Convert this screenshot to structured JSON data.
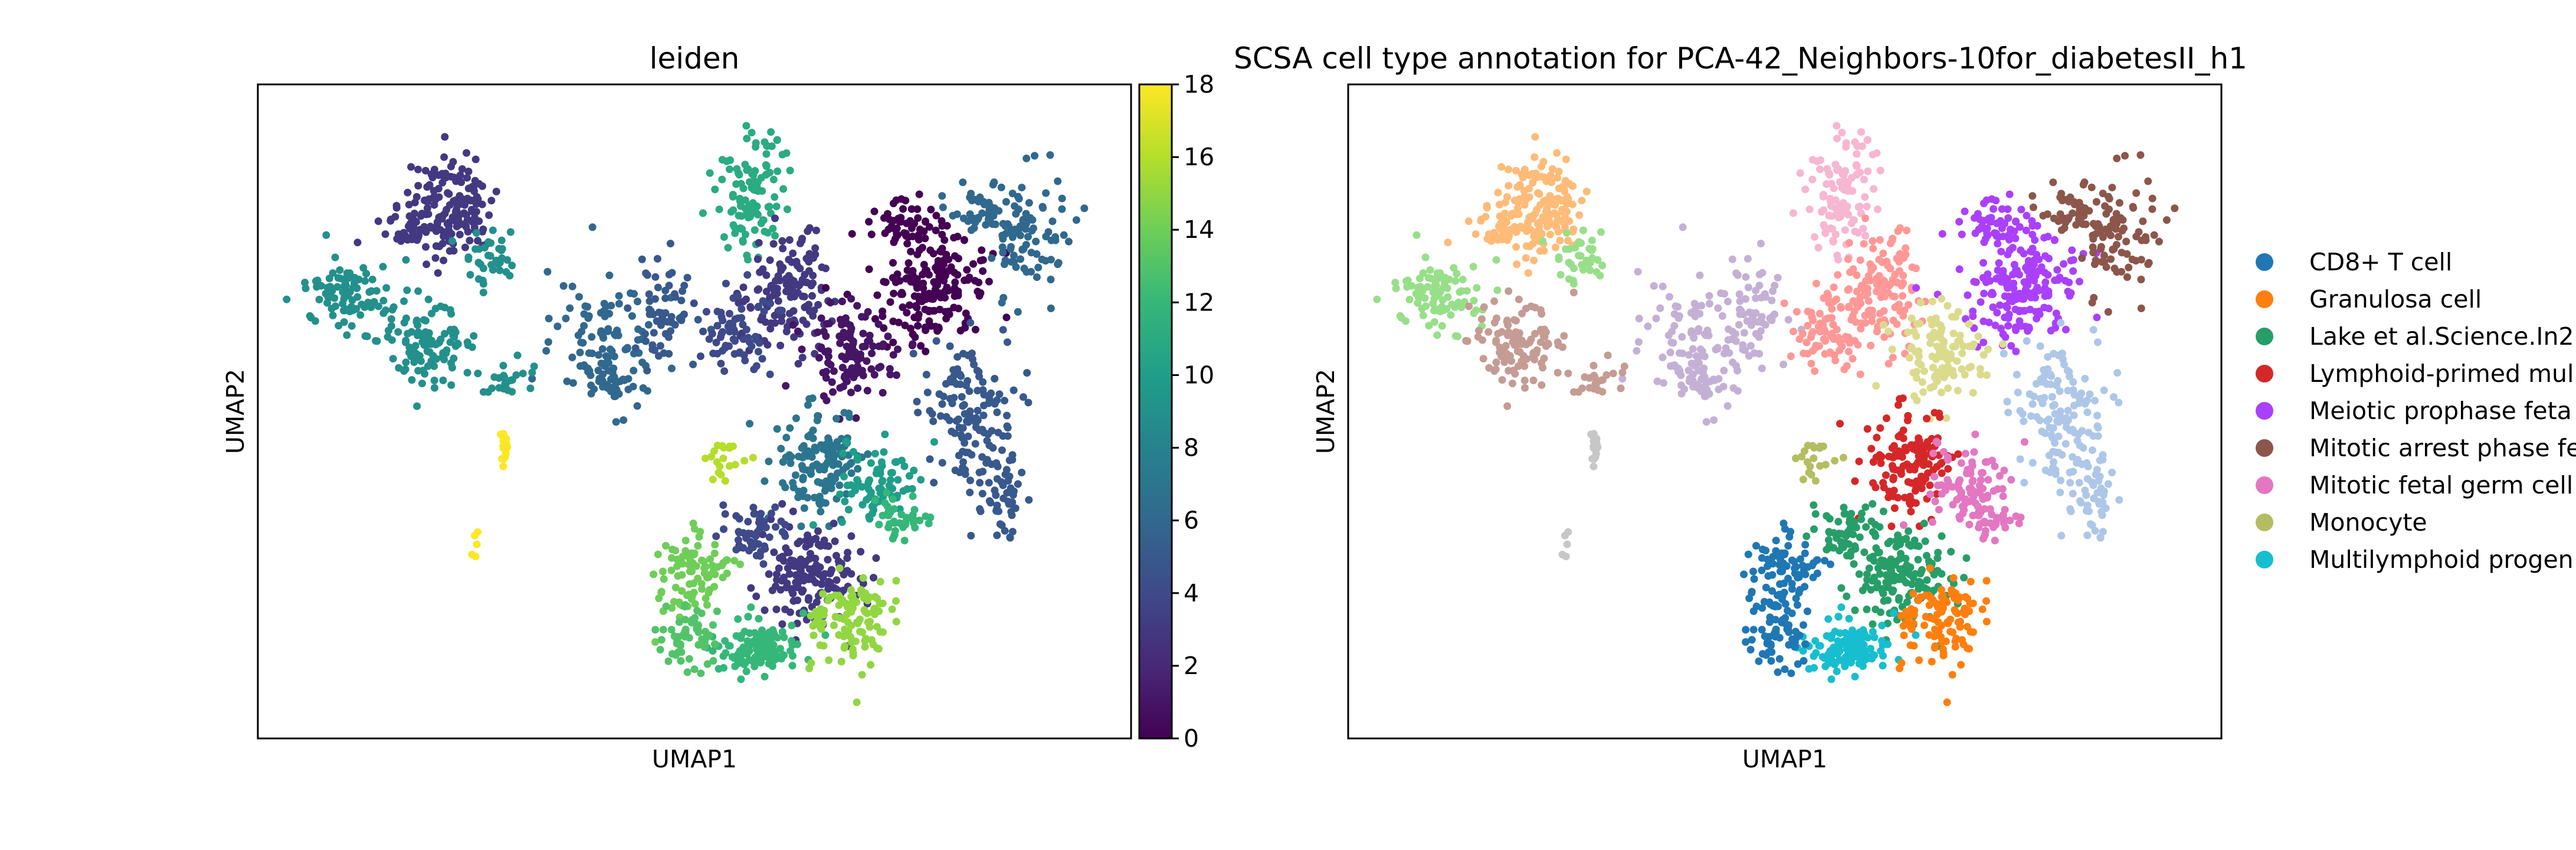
{
  "chart_data": [
    {
      "type": "scatter",
      "title": "leiden",
      "xlabel": "UMAP1",
      "ylabel": "UMAP2",
      "colorbar": {
        "colormap": "viridis",
        "range": [
          0,
          18
        ],
        "ticks": [
          "0",
          "2",
          "4",
          "6",
          "8",
          "10",
          "12",
          "14",
          "16",
          "18"
        ]
      },
      "grid": false
    },
    {
      "type": "scatter",
      "title": "SCSA cell type annotation for PCA-42_Neighbors-10for_diabetesII_h1",
      "xlabel": "UMAP1",
      "ylabel": "UMAP2",
      "legend_position": "right",
      "grid": false,
      "legend": [
        {
          "label": "CD8+ T cell",
          "color": "#1f77b4"
        },
        {
          "label": "Granulosa cell",
          "color": "#ff7f0e"
        },
        {
          "label": "Lake et al.Science.In2",
          "color": "#279e68"
        },
        {
          "label": "Lymphoid-primed mul",
          "color": "#d62728"
        },
        {
          "label": "Meiotic prophase feta",
          "color": "#aa40fc"
        },
        {
          "label": "Mitotic arrest phase fe",
          "color": "#8c564b"
        },
        {
          "label": "Mitotic fetal germ cell",
          "color": "#e377c2"
        },
        {
          "label": "Monocyte",
          "color": "#b5bd61"
        },
        {
          "label": "Multilymphoid progen",
          "color": "#17becf"
        }
      ]
    }
  ]
}
